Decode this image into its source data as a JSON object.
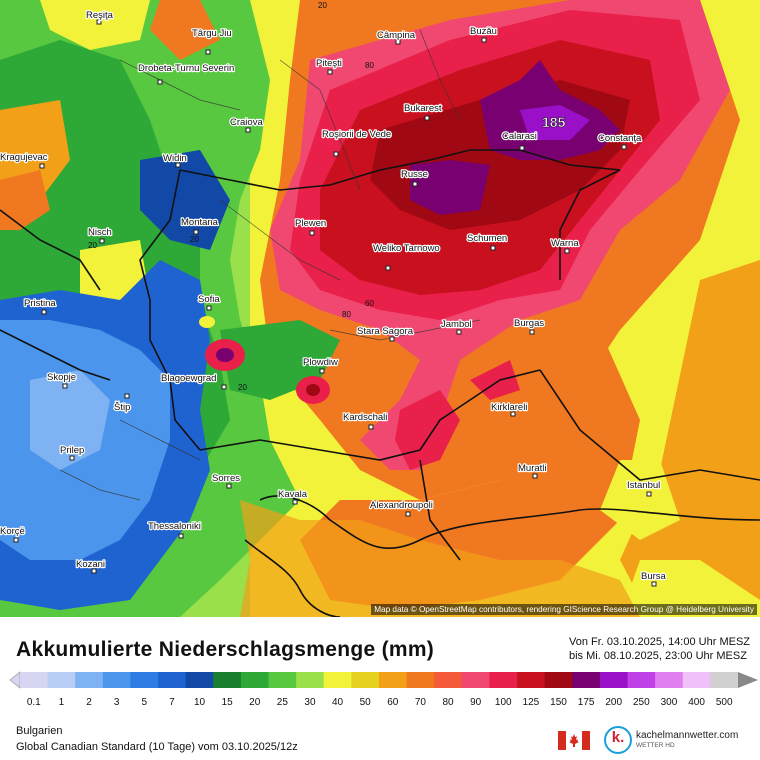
{
  "map": {
    "max_value_label": "185",
    "cities": [
      {
        "name": "Reşiţa"
      },
      {
        "name": "Târgu Jiu"
      },
      {
        "name": "Câmpina"
      },
      {
        "name": "Buzău"
      },
      {
        "name": "Drobeta-Turnu Severin"
      },
      {
        "name": "Piteşti"
      },
      {
        "name": "Bukarest"
      },
      {
        "name": "Craiova"
      },
      {
        "name": "Roşiorii de Vede"
      },
      {
        "name": "Calarasi"
      },
      {
        "name": "Constanţa"
      },
      {
        "name": "Kragujevac"
      },
      {
        "name": "Widin"
      },
      {
        "name": "Russe"
      },
      {
        "name": "Montana"
      },
      {
        "name": "Plewen"
      },
      {
        "name": "Schumen"
      },
      {
        "name": "Warna"
      },
      {
        "name": "Nisch"
      },
      {
        "name": "Weliko Tarnowo"
      },
      {
        "name": "Pristina"
      },
      {
        "name": "Sofia"
      },
      {
        "name": "Stara Sagora"
      },
      {
        "name": "Jambol"
      },
      {
        "name": "Burgas"
      },
      {
        "name": "Plowdiw"
      },
      {
        "name": "Skopje"
      },
      {
        "name": "Blagoewgrad"
      },
      {
        "name": "Štip"
      },
      {
        "name": "Kirklareli"
      },
      {
        "name": "Kardschali"
      },
      {
        "name": "Prilep"
      },
      {
        "name": "Muratli"
      },
      {
        "name": "Sorres"
      },
      {
        "name": "Istanbul"
      },
      {
        "name": "Kavala"
      },
      {
        "name": "Alexandroupoli"
      },
      {
        "name": "Thessaloniki"
      },
      {
        "name": "Korçë"
      },
      {
        "name": "Kozani"
      },
      {
        "name": "Bursa"
      }
    ],
    "contour_labels": [
      "20",
      "80",
      "20",
      "20",
      "60",
      "80",
      "20"
    ],
    "attribution": "Map data © OpenStreetMap contributors, rendering GIScience Research Group @ Heidelberg University"
  },
  "legend": {
    "title": "Akkumulierte Niederschlagsmenge (mm)",
    "period_line1": "Von Fr. 03.10.2025, 14:00 Uhr MESZ",
    "period_line2": "bis Mi. 08.10.2025, 23:00 Uhr MESZ",
    "scale_labels": [
      "0.1",
      "1",
      "2",
      "3",
      "5",
      "7",
      "10",
      "15",
      "20",
      "25",
      "30",
      "40",
      "50",
      "60",
      "70",
      "80",
      "90",
      "100",
      "125",
      "150",
      "175",
      "200",
      "250",
      "300",
      "400",
      "500"
    ],
    "scale_colors": [
      "#d6d6f0",
      "#b8cdf5",
      "#7fb2f2",
      "#4b95ec",
      "#2f7ce4",
      "#1f63d0",
      "#1248a6",
      "#1a7f2c",
      "#2ea836",
      "#57c840",
      "#9ae04a",
      "#f2f23a",
      "#e6d020",
      "#f2a018",
      "#f07820",
      "#f45a3a",
      "#f04870",
      "#e8204a",
      "#c8101e",
      "#a00814",
      "#780070",
      "#9a10c8",
      "#c040e8",
      "#e080f0",
      "#f0c0f8",
      "#d0d0d0"
    ],
    "region": "Bulgarien",
    "model": "Global Canadian Standard (10 Tage) vom  03.10.2025/12z",
    "brand": "kachelmannwetter.com",
    "brand_sub": "WETTER HD"
  }
}
